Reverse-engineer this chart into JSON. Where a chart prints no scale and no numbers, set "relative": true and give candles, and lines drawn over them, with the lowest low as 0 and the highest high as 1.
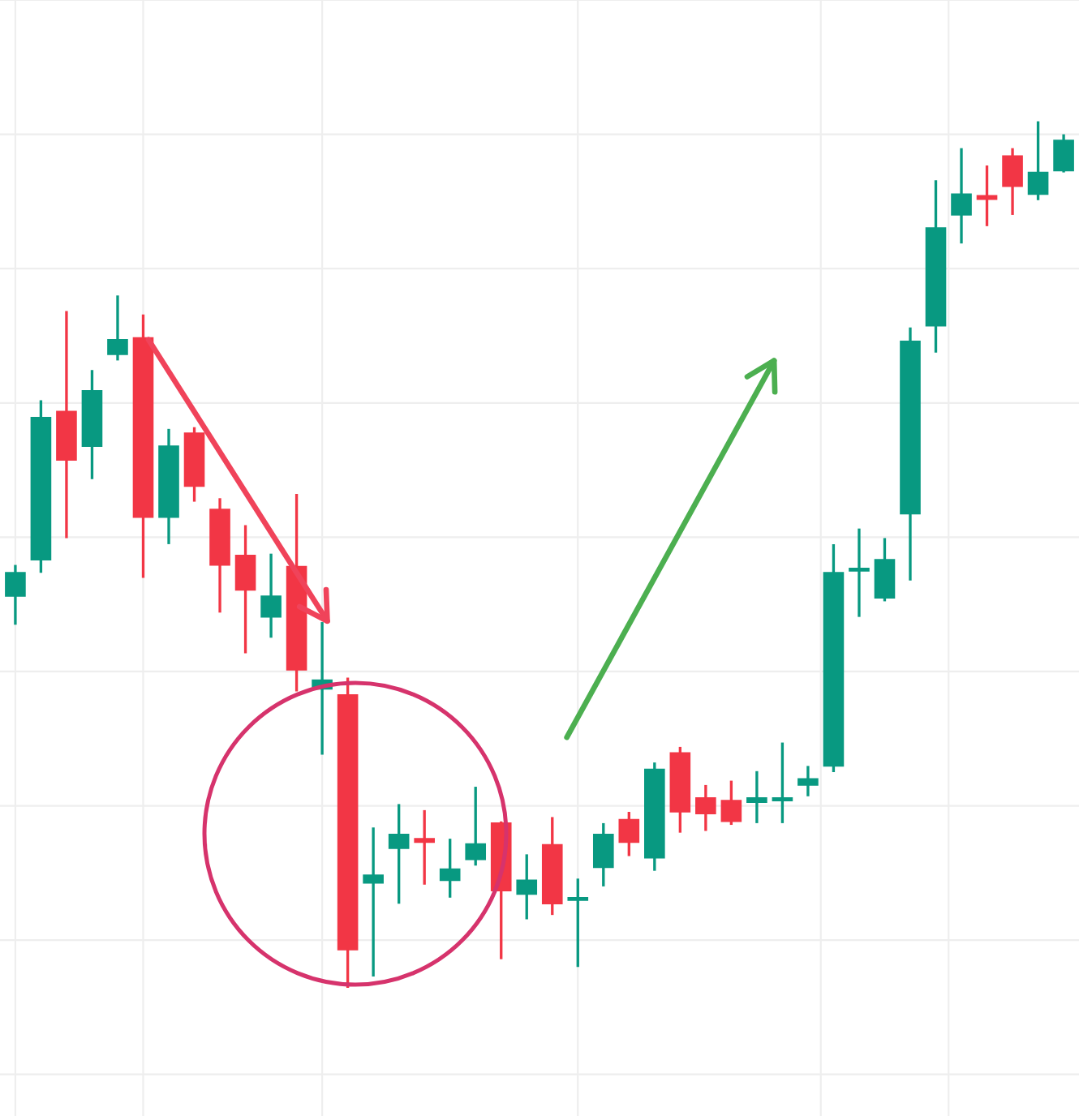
{
  "chart_data": {
    "type": "candlestick",
    "relative": true,
    "grid": true,
    "categories": [
      null,
      null,
      null,
      null,
      null,
      null,
      null,
      null,
      null,
      null,
      null,
      null,
      null,
      null,
      null,
      null,
      null,
      null,
      null,
      null,
      null,
      null,
      null,
      null,
      null,
      null,
      null,
      null,
      null,
      null,
      null,
      null,
      null,
      null,
      null,
      null,
      null,
      null,
      null,
      null,
      null,
      null
    ],
    "colors": [
      "#089981",
      "#089981",
      "#f23645",
      "#089981",
      "#089981",
      "#f23645",
      "#089981",
      "#f23645",
      "#f23645",
      "#f23645",
      "#089981",
      "#f23645",
      "#089981",
      "#f23645",
      "#089981",
      "#089981",
      "#f23645",
      "#089981",
      "#089981",
      "#f23645",
      "#089981",
      "#f23645",
      "#089981",
      "#089981",
      "#f23645",
      "#089981",
      "#f23645",
      "#f23645",
      "#f23645",
      "#089981",
      "#089981",
      "#089981",
      "#089981",
      "#089981",
      "#089981",
      "#089981",
      "#089981",
      "#089981",
      "#f23645",
      "#f23645",
      "#089981",
      "#089981"
    ],
    "ohlc": [
      [
        0.452,
        0.488,
        0.419,
        0.479
      ],
      [
        0.494,
        0.678,
        0.479,
        0.658
      ],
      [
        0.665,
        0.781,
        0.519,
        0.609
      ],
      [
        0.625,
        0.713,
        0.587,
        0.689
      ],
      [
        0.731,
        0.799,
        0.724,
        0.748
      ],
      [
        0.75,
        0.777,
        0.473,
        0.543
      ],
      [
        0.543,
        0.645,
        0.512,
        0.625
      ],
      [
        0.64,
        0.647,
        0.561,
        0.579
      ],
      [
        0.552,
        0.565,
        0.433,
        0.488
      ],
      [
        0.499,
        0.534,
        0.386,
        0.459
      ],
      [
        0.428,
        0.501,
        0.404,
        0.452
      ],
      [
        0.486,
        0.57,
        0.342,
        0.367
      ],
      [
        0.345,
        0.422,
        0.269,
        0.355
      ],
      [
        0.338,
        0.358,
        0.0,
        0.044
      ],
      [
        0.121,
        0.185,
        0.013,
        0.13
      ],
      [
        0.161,
        0.212,
        0.097,
        0.177
      ],
      [
        0.172,
        0.205,
        0.119,
        0.168
      ],
      [
        0.124,
        0.172,
        0.104,
        0.137
      ],
      [
        0.148,
        0.232,
        0.141,
        0.166
      ],
      [
        0.19,
        0.192,
        0.033,
        0.112
      ],
      [
        0.108,
        0.154,
        0.079,
        0.124
      ],
      [
        0.165,
        0.197,
        0.084,
        0.097
      ],
      [
        0.101,
        0.126,
        0.024,
        0.102
      ],
      [
        0.139,
        0.19,
        0.117,
        0.177
      ],
      [
        0.194,
        0.203,
        0.152,
        0.168
      ],
      [
        0.15,
        0.26,
        0.135,
        0.252
      ],
      [
        0.271,
        0.278,
        0.179,
        0.203
      ],
      [
        0.219,
        0.234,
        0.181,
        0.201
      ],
      [
        0.216,
        0.239,
        0.188,
        0.192
      ],
      [
        0.214,
        0.25,
        0.19,
        0.219
      ],
      [
        0.216,
        0.283,
        0.19,
        0.218
      ],
      [
        0.234,
        0.256,
        0.221,
        0.241
      ],
      [
        0.256,
        0.512,
        0.249,
        0.479
      ],
      [
        0.481,
        0.53,
        0.428,
        0.483
      ],
      [
        0.45,
        0.519,
        0.446,
        0.494
      ],
      [
        0.547,
        0.762,
        0.47,
        0.746
      ],
      [
        0.764,
        0.932,
        0.733,
        0.877
      ],
      [
        0.892,
        0.969,
        0.859,
        0.916
      ],
      [
        0.914,
        0.949,
        0.879,
        0.91
      ],
      [
        0.96,
        0.969,
        0.892,
        0.925
      ],
      [
        0.916,
        1.0,
        0.909,
        0.941
      ],
      [
        0.943,
        0.985,
        0.941,
        0.978
      ]
    ]
  }
}
